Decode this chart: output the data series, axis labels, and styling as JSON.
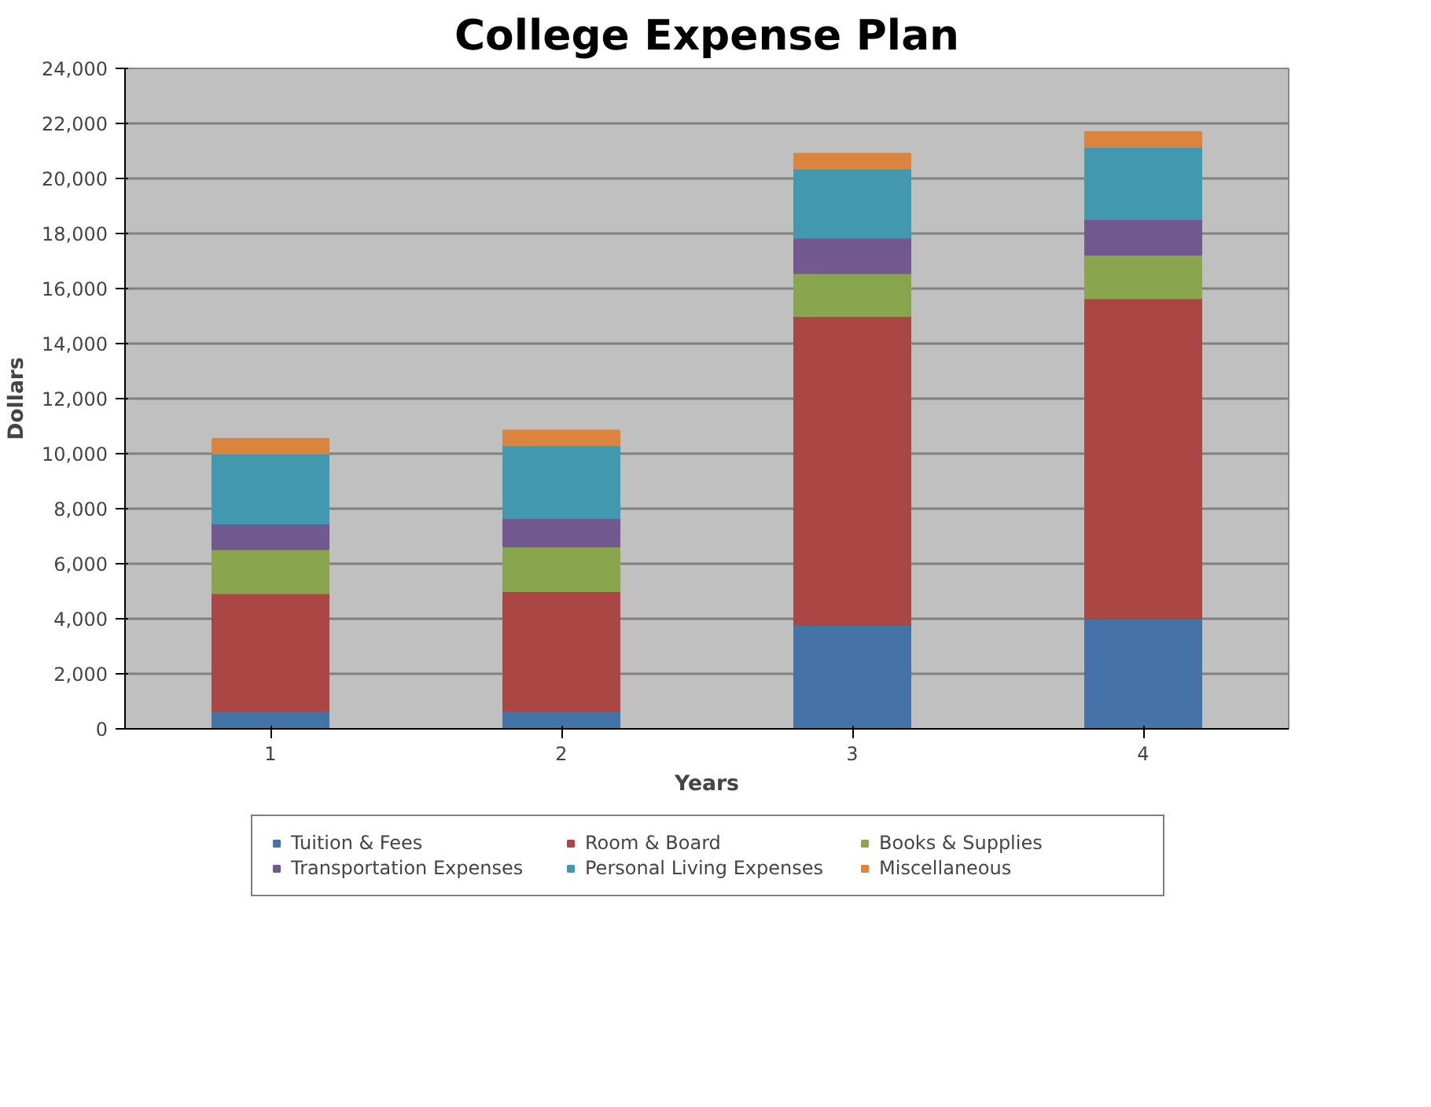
{
  "chart_data": {
    "type": "bar",
    "title": "College Expense Plan",
    "xlabel": "Years",
    "ylabel": "Dollars",
    "categories": [
      "1",
      "2",
      "3",
      "4"
    ],
    "stacked": true,
    "series": [
      {
        "name": "Tuition & Fees",
        "color": "#4572a7",
        "values": [
          650,
          650,
          3770,
          4000
        ]
      },
      {
        "name": "Room & Board",
        "color": "#aa4643",
        "values": [
          4270,
          4350,
          11220,
          11640
        ]
      },
      {
        "name": "Books & Supplies",
        "color": "#89a54e",
        "values": [
          1600,
          1620,
          1570,
          1590
        ]
      },
      {
        "name": "Transportation Expenses",
        "color": "#71588f",
        "values": [
          940,
          1030,
          1280,
          1290
        ]
      },
      {
        "name": "Personal Living Expenses",
        "color": "#4198af",
        "values": [
          2540,
          2650,
          2520,
          2620
        ]
      },
      {
        "name": "Miscellaneous",
        "color": "#db843d",
        "values": [
          540,
          540,
          540,
          550
        ]
      }
    ],
    "ylim": [
      0,
      24000
    ],
    "yticks": [
      {
        "value": 0,
        "label": "0"
      },
      {
        "value": 2000,
        "label": "2,000"
      },
      {
        "value": 4000,
        "label": "4,000"
      },
      {
        "value": 6000,
        "label": "6,000"
      },
      {
        "value": 8000,
        "label": "8,000"
      },
      {
        "value": 10000,
        "label": "10,000"
      },
      {
        "value": 12000,
        "label": "12,000"
      },
      {
        "value": 14000,
        "label": "14,000"
      },
      {
        "value": 16000,
        "label": "16,000"
      },
      {
        "value": 18000,
        "label": "18,000"
      },
      {
        "value": 20000,
        "label": "20,000"
      },
      {
        "value": 22000,
        "label": "22,000"
      },
      {
        "value": 24000,
        "label": "24,000"
      }
    ],
    "grid": "y",
    "legend": "bottom"
  }
}
